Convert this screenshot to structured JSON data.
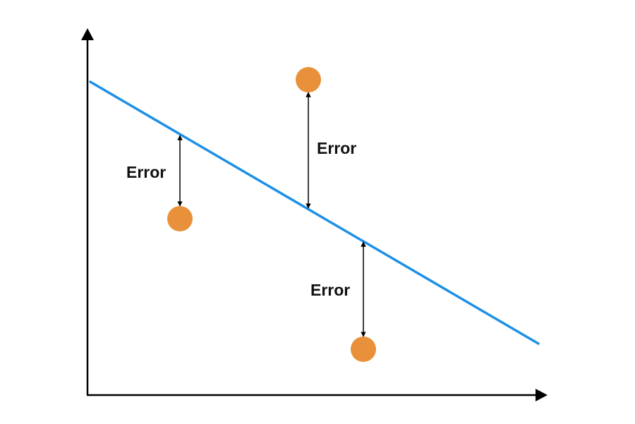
{
  "colors": {
    "axis": "#000000",
    "regression_line": "#1e90e6",
    "data_point": "#e8913a",
    "error_arrow": "#000000",
    "label_text": "#111111"
  },
  "labels": {
    "error_1": "Error",
    "error_2": "Error",
    "error_3": "Error"
  },
  "icons": {
    "x_axis_head": "triangle-right-icon",
    "y_axis_head": "triangle-up-icon"
  }
}
